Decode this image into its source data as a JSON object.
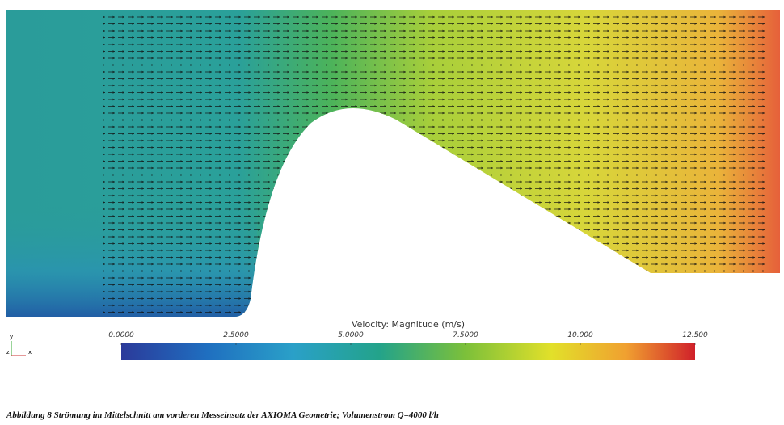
{
  "figure": {
    "colorbar": {
      "title": "Velocity: Magnitude (m/s)",
      "range": [
        0,
        12.5
      ],
      "ticks": [
        {
          "value": 0,
          "label": "0.0000"
        },
        {
          "value": 2.5,
          "label": "2.5000"
        },
        {
          "value": 5,
          "label": "5.0000"
        },
        {
          "value": 7.5,
          "label": "7.5000"
        },
        {
          "value": 10,
          "label": "10.000"
        },
        {
          "value": 12.5,
          "label": "12.500"
        }
      ]
    },
    "axes_triad": {
      "y": "y",
      "z": "z",
      "x": "x"
    },
    "caption": "Abbildung 8 Strömung im Mittelschnitt am vorderen Messeinsatz der AXIOMA Geometrie; Volumenstrom Q=4000 l/h"
  }
}
